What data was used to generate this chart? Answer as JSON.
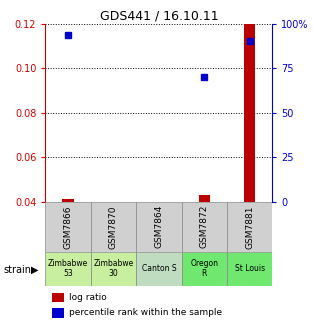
{
  "title": "GDS441 / 16.10.11",
  "samples": [
    "GSM7866",
    "GSM7870",
    "GSM7864",
    "GSM7872",
    "GSM7881"
  ],
  "strains": [
    "Zimbabwe\n53",
    "Zimbabwe\n30",
    "Canton S",
    "Oregon\nR",
    "St Louis"
  ],
  "strain_colors": [
    "#c8eea0",
    "#c8eea0",
    "#c0dcc0",
    "#70e870",
    "#70e870"
  ],
  "gsm_bg_color": "#d0d0d0",
  "log_ratios": [
    0.041,
    null,
    null,
    0.043,
    0.12
  ],
  "percentile_ranks_left": [
    0.115,
    null,
    null,
    0.096,
    0.112
  ],
  "ylim_left": [
    0.04,
    0.12
  ],
  "ylim_right": [
    0,
    100
  ],
  "yticks_left": [
    0.04,
    0.06,
    0.08,
    0.1,
    0.12
  ],
  "yticks_right": [
    0,
    25,
    50,
    75,
    100
  ],
  "left_color": "#cc0000",
  "right_color": "#0000cc",
  "bar_color": "#bb0000",
  "dot_color": "#0000cc",
  "legend_red_label": "log ratio",
  "legend_blue_label": "percentile rank within the sample",
  "bar_width": 0.25
}
